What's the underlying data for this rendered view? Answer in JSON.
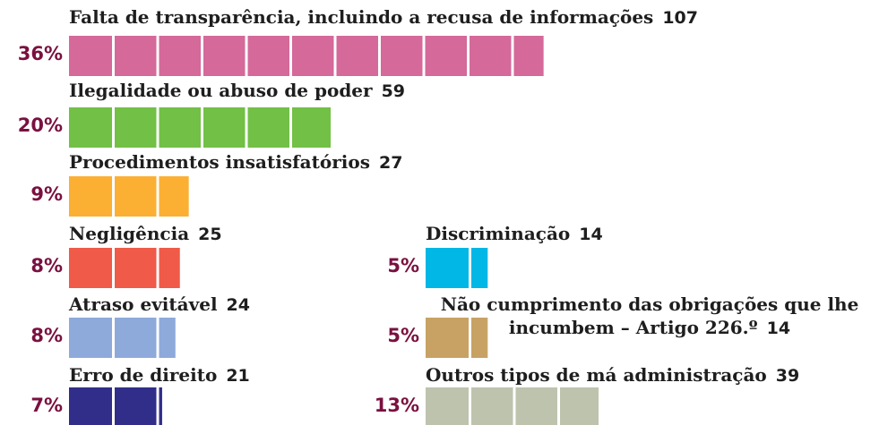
{
  "chart_data": {
    "type": "bar",
    "categories": [
      "Falta de transparência, incluindo a recusa de informações",
      "Ilegalidade ou abuso de poder",
      "Procedimentos insatisfatórios",
      "Negligência",
      "Atraso evitável",
      "Erro de direito",
      "Discriminação",
      "Não cumprimento das obrigações que lhe\nincumbem – Artigo 226.º",
      "Outros tipos de má administração"
    ],
    "values": [
      107,
      59,
      27,
      25,
      24,
      21,
      14,
      14,
      39
    ],
    "percent_labels": [
      "36%",
      "20%",
      "9%",
      "8%",
      "8%",
      "7%",
      "5%",
      "5%",
      "13%"
    ],
    "colors": [
      "#d4699a",
      "#72c046",
      "#fbb034",
      "#f05a48",
      "#8eaadb",
      "#312e8a",
      "#00b7e6",
      "#c8a264",
      "#bec3ae"
    ]
  }
}
